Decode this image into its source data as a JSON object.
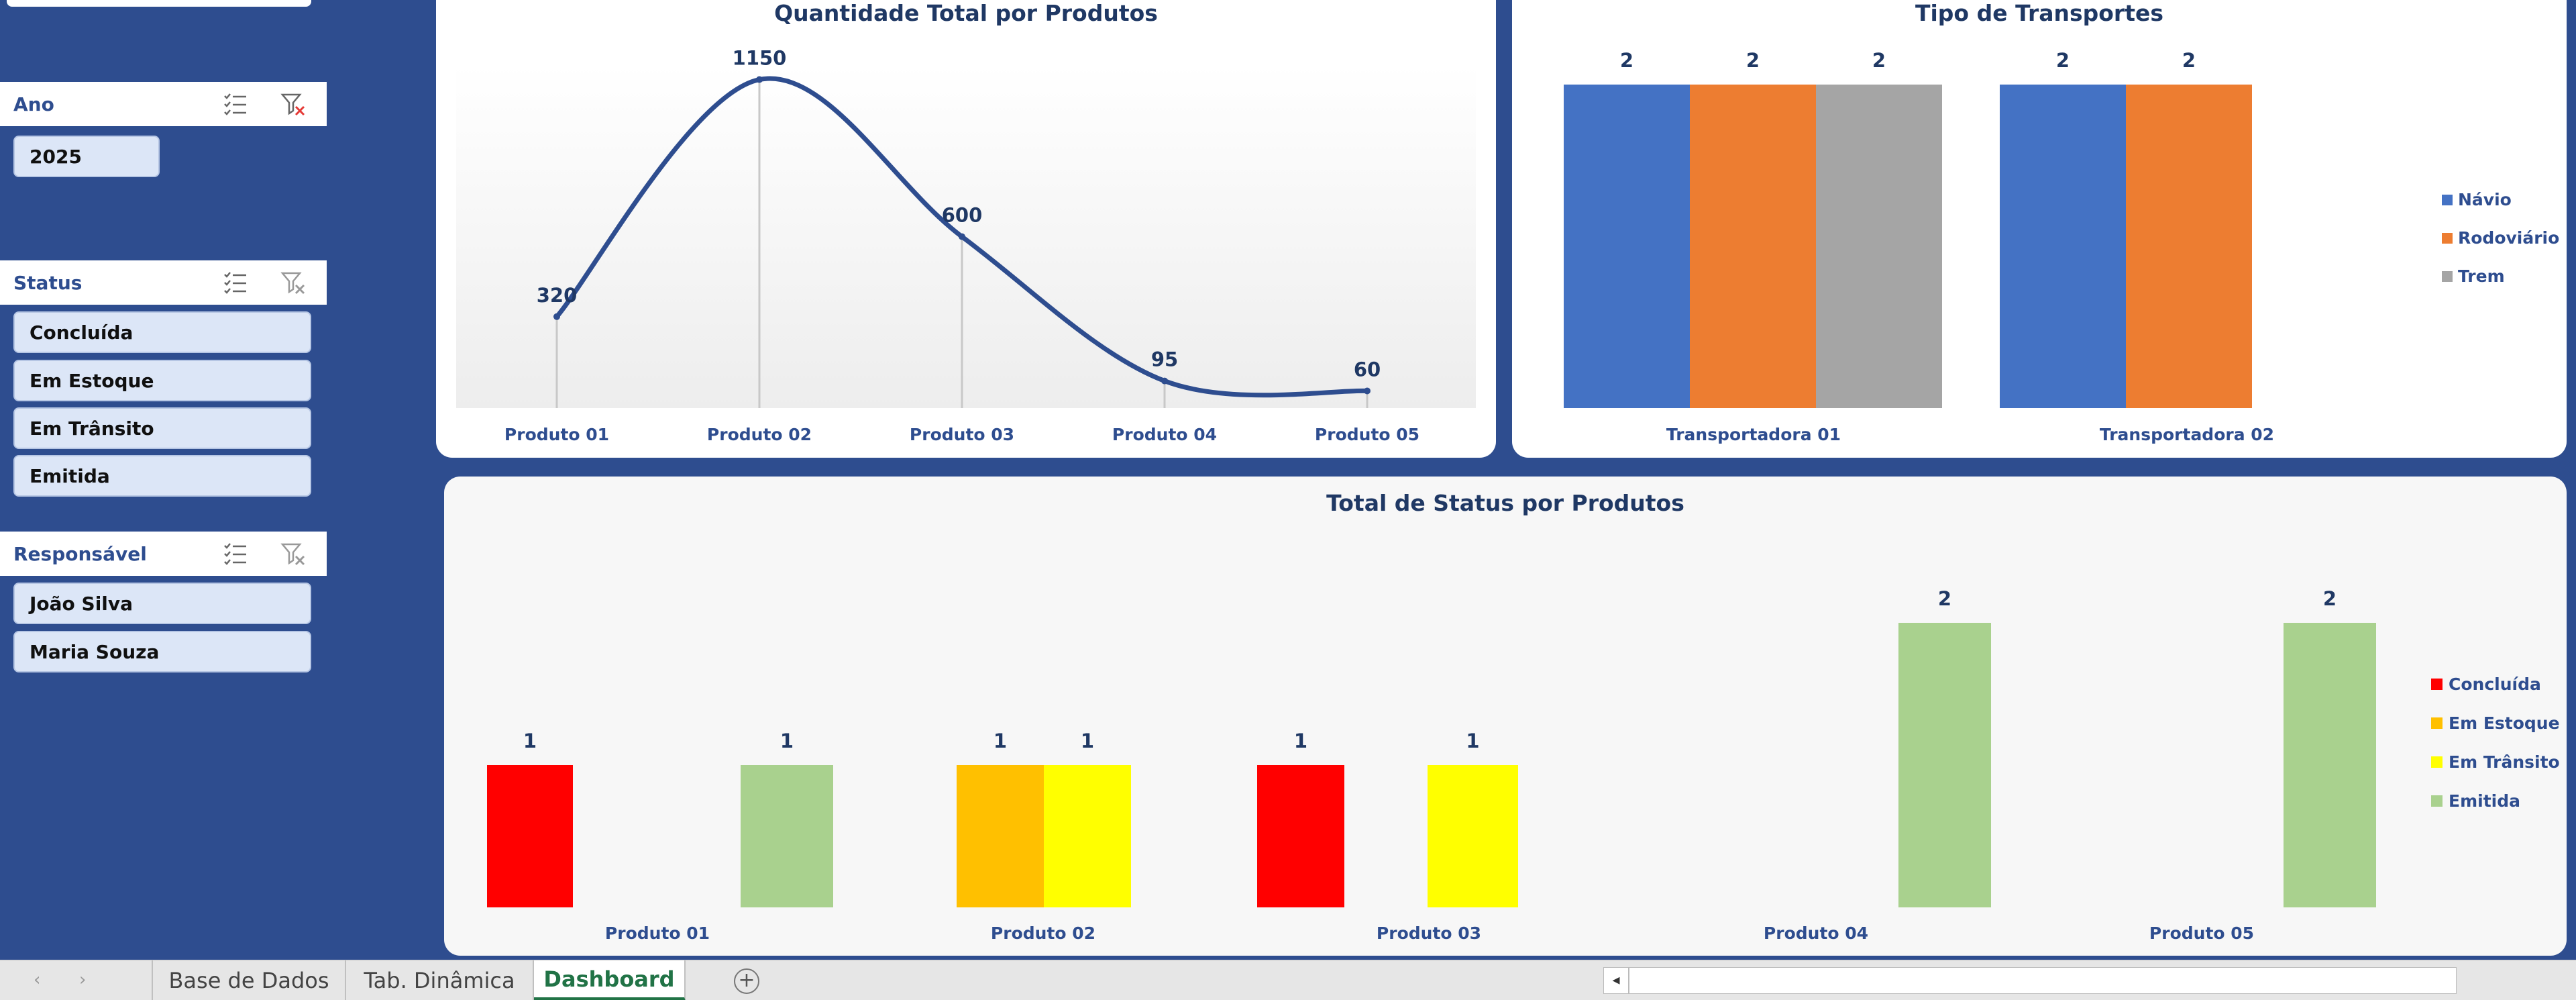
{
  "slicers": [
    {
      "title": "Ano",
      "items": [
        "2025"
      ]
    },
    {
      "title": "Status",
      "items": [
        "Concluída",
        "Em Estoque",
        "Em Trânsito",
        "Emitida"
      ]
    },
    {
      "title": "Responsável",
      "items": [
        "João Silva",
        "Maria Souza"
      ]
    }
  ],
  "slicer_icons": {
    "multiselect": "multi-select-icon",
    "clear": "clear-filter-icon"
  },
  "charts": {
    "quantidade": {
      "title": "Quantidade Total por Produtos"
    },
    "transportes": {
      "title": "Tipo de Transportes"
    },
    "status": {
      "title": "Total de Status por Produtos"
    }
  },
  "chart_data": [
    {
      "type": "line",
      "title": "Quantidade Total por Produtos",
      "categories": [
        "Produto 01",
        "Produto 02",
        "Produto 03",
        "Produto 04",
        "Produto 05"
      ],
      "values": [
        320,
        1150,
        600,
        95,
        60
      ],
      "smooth": true,
      "drop_lines": true,
      "color": "#2E4D8F",
      "ylim": [
        0,
        1250
      ],
      "grid": false,
      "legend": "none"
    },
    {
      "type": "bar",
      "title": "Tipo de Transportes",
      "categories": [
        "Transportadora 01",
        "Transportadora 02"
      ],
      "series": [
        {
          "name": "Návio",
          "color": "#4472C4",
          "values": [
            2,
            2
          ]
        },
        {
          "name": "Rodoviário",
          "color": "#ED7D31",
          "values": [
            2,
            2
          ]
        },
        {
          "name": "Trem",
          "color": "#A5A5A5",
          "values": [
            2,
            null
          ]
        }
      ],
      "ylim": [
        0,
        2.3
      ],
      "grid": false,
      "legend": "right"
    },
    {
      "type": "bar",
      "title": "Total de Status por Produtos",
      "categories": [
        "Produto 01",
        "Produto 02",
        "Produto 03",
        "Produto 04",
        "Produto 05"
      ],
      "series": [
        {
          "name": "Concluída",
          "color": "#FF0000",
          "values": [
            1,
            null,
            1,
            null,
            null
          ]
        },
        {
          "name": "Em Estoque",
          "color": "#FFC000",
          "values": [
            null,
            1,
            null,
            null,
            null
          ]
        },
        {
          "name": "Em Trânsito",
          "color": "#FFFF00",
          "values": [
            null,
            1,
            1,
            null,
            null
          ]
        },
        {
          "name": "Emitida",
          "color": "#A9D18E",
          "values": [
            1,
            null,
            null,
            2,
            2
          ]
        }
      ],
      "ylim": [
        0,
        2.4
      ],
      "grid": false,
      "legend": "right"
    }
  ],
  "sheet_tabs": [
    {
      "label": "Base de Dados",
      "active": false
    },
    {
      "label": "Tab. Dinâmica",
      "active": false
    },
    {
      "label": "Dashboard",
      "active": true
    }
  ],
  "tab_nav": {
    "prev": "‹",
    "next": "›"
  },
  "add_sheet": "+",
  "scroll_left": "◂"
}
